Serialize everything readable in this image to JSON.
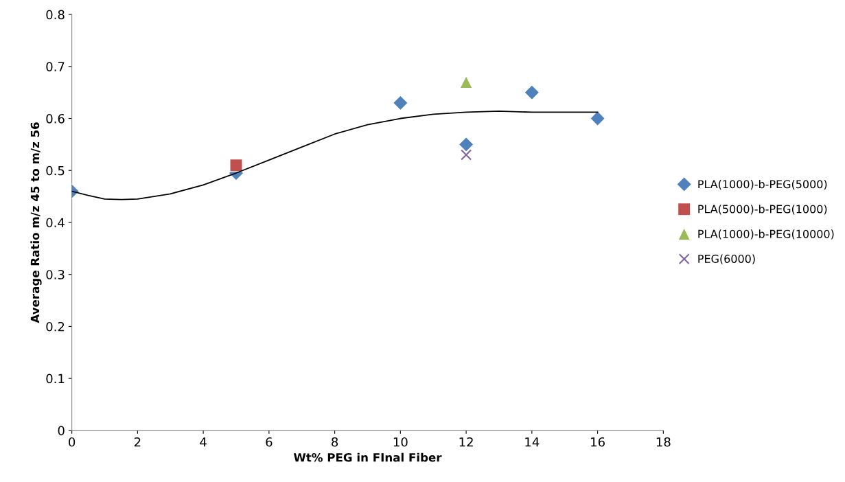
{
  "chart_data": {
    "type": "scatter",
    "xlabel": "Wt% PEG in FInal Fiber",
    "ylabel": "Average Ratio m/z 45 to m/z 56",
    "xlim": [
      0,
      18
    ],
    "xticks": [
      0,
      2,
      4,
      6,
      8,
      10,
      12,
      14,
      16,
      18
    ],
    "ylim": [
      0,
      0.8
    ],
    "yticks": [
      0,
      0.1,
      0.2,
      0.3,
      0.4,
      0.5,
      0.6,
      0.7,
      0.8
    ],
    "grid": false,
    "legend": "right",
    "series": [
      {
        "name": "PLA(1000)-b-PEG(5000)",
        "color": "#4f81bd",
        "marker": "diamond",
        "x": [
          0,
          5,
          10,
          12,
          14,
          16
        ],
        "values": [
          0.46,
          0.495,
          0.63,
          0.55,
          0.65,
          0.6
        ]
      },
      {
        "name": "PLA(5000)-b-PEG(1000)",
        "color": "#c0504d",
        "marker": "square",
        "x": [
          5
        ],
        "values": [
          0.51
        ]
      },
      {
        "name": "PLA(1000)-b-PEG(10000)",
        "color": "#9bbb59",
        "marker": "triangle",
        "x": [
          12
        ],
        "values": [
          0.67
        ]
      },
      {
        "name": "PEG(6000)",
        "color": "#8064a2",
        "marker": "cross",
        "x": [
          12
        ],
        "values": [
          0.53
        ]
      },
      {
        "type": "line",
        "color": "#000000",
        "marker": "none",
        "x": [
          0,
          0.5,
          1,
          1.5,
          2,
          3,
          4,
          5,
          6,
          7,
          8,
          9,
          10,
          11,
          12,
          13,
          14,
          15,
          16
        ],
        "values": [
          0.46,
          0.452,
          0.445,
          0.444,
          0.445,
          0.455,
          0.472,
          0.495,
          0.52,
          0.545,
          0.57,
          0.588,
          0.6,
          0.608,
          0.612,
          0.614,
          0.612,
          0.612,
          0.612
        ]
      }
    ]
  }
}
